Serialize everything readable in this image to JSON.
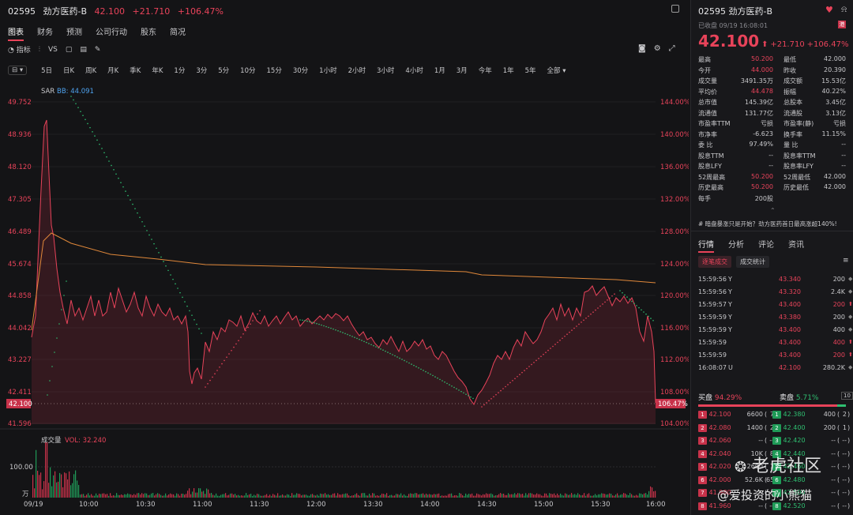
{
  "header": {
    "code": "02595",
    "name": "劲方医药-B",
    "price": "42.100",
    "change": "+21.710",
    "pct": "+106.47%"
  },
  "tabs": [
    "图表",
    "财务",
    "预测",
    "公司行动",
    "股东",
    "简况"
  ],
  "tools": {
    "indicator": "指标",
    "vs": "VS"
  },
  "periods": [
    "5日",
    "日K",
    "周K",
    "月K",
    "季K",
    "年K",
    "1分",
    "3分",
    "5分",
    "10分",
    "15分",
    "30分",
    "1小时",
    "2小时",
    "3小时",
    "4小时",
    "1月",
    "3月",
    "今年",
    "1年",
    "5年",
    "全部"
  ],
  "chart": {
    "indicator_label": "SAR",
    "bb_label": "BB: 44.091",
    "price_ticks": [
      "49.752",
      "48.936",
      "48.120",
      "47.305",
      "46.489",
      "45.674",
      "44.858",
      "44.042",
      "43.227",
      "42.411",
      "41.596"
    ],
    "pct_ticks": [
      "144.00%",
      "140.00%",
      "136.00%",
      "132.00%",
      "128.00%",
      "124.00%",
      "120.00%",
      "116.00%",
      "112.00%",
      "108.00%",
      "104.00%"
    ],
    "current_price": "42.100",
    "current_pct": "106.47%",
    "vol_label": "成交量",
    "vol_value": "VOL: 32.240",
    "vol_tick": "100.00",
    "vol_unit": "万",
    "time_ticks": [
      "09/19",
      "10:00",
      "10:30",
      "11:00",
      "11:30",
      "12:00",
      "13:30",
      "14:00",
      "14:30",
      "15:00",
      "15:30",
      "16:00"
    ]
  },
  "right": {
    "code": "02595",
    "name": "劲方医药-B",
    "close_info": "已收盘 09/19 16:08:01",
    "price": "42.100",
    "change": "+21.710",
    "pct": "+106.47%",
    "stats": [
      [
        "最高",
        "50.200",
        "最低",
        "42.000"
      ],
      [
        "今开",
        "44.000",
        "昨收",
        "20.390"
      ],
      [
        "成交量",
        "3491.35万",
        "成交额",
        "15.53亿"
      ],
      [
        "平均价",
        "44.478",
        "振幅",
        "40.22%"
      ],
      [
        "总市值",
        "145.39亿",
        "总股本",
        "3.45亿"
      ],
      [
        "流通值",
        "131.77亿",
        "流通股",
        "3.13亿"
      ],
      [
        "市盈率TTM",
        "亏损",
        "市盈率(静)",
        "亏损"
      ],
      [
        "市净率",
        "-6.623",
        "换手率",
        "11.15%"
      ],
      [
        "委 比",
        "97.49%",
        "量 比",
        "--"
      ],
      [
        "股息TTM",
        "--",
        "股息率TTM",
        "--"
      ],
      [
        "股息LFY",
        "--",
        "股息率LFY",
        "--"
      ],
      [
        "52周最高",
        "50.200",
        "52周最低",
        "42.000"
      ],
      [
        "历史最高",
        "50.200",
        "历史最低",
        "42.000"
      ],
      [
        "每手",
        "200股",
        "",
        ""
      ]
    ],
    "news": "暗盘暴涨只是开始？劲方医药首日最高涨超140%!",
    "tabs": [
      "行情",
      "分析",
      "评论",
      "资讯"
    ],
    "subtabs": [
      "逐笔成交",
      "成交统计"
    ],
    "trades": [
      [
        "15:59:56",
        "Y",
        "43.340",
        "200",
        "g"
      ],
      [
        "15:59:56",
        "Y",
        "43.320",
        "2.4K",
        "g"
      ],
      [
        "15:59:57",
        "Y",
        "43.400",
        "200",
        "r"
      ],
      [
        "15:59:59",
        "Y",
        "43.380",
        "200",
        "g"
      ],
      [
        "15:59:59",
        "Y",
        "43.400",
        "400",
        "g"
      ],
      [
        "15:59:59",
        "",
        "43.400",
        "400",
        "r"
      ],
      [
        "15:59:59",
        "",
        "43.400",
        "200",
        "r"
      ],
      [
        "16:08:07",
        "U",
        "42.100",
        "280.2K",
        "g"
      ]
    ],
    "buy_label": "买盘",
    "buy_pct": "94.29%",
    "sell_label": "卖盘",
    "sell_pct": "5.71%",
    "depth": "10",
    "bids": [
      [
        "1",
        "42.100",
        "6600",
        "7"
      ],
      [
        "2",
        "42.080",
        "1400",
        "2"
      ],
      [
        "3",
        "42.060",
        "--",
        "--"
      ],
      [
        "4",
        "42.040",
        "10K",
        "8"
      ],
      [
        "5",
        "42.020",
        "2600",
        "1"
      ],
      [
        "6",
        "42.000",
        "52.6K",
        "65"
      ],
      [
        "7",
        "41.980",
        "--",
        "--"
      ],
      [
        "8",
        "41.960",
        "--",
        "--"
      ]
    ],
    "asks": [
      [
        "1",
        "42.380",
        "400",
        "2"
      ],
      [
        "2",
        "42.400",
        "200",
        "1"
      ],
      [
        "3",
        "42.420",
        "--",
        "--"
      ],
      [
        "4",
        "42.440",
        "--",
        "--"
      ],
      [
        "5",
        "42.460",
        "--",
        "--"
      ],
      [
        "6",
        "42.480",
        "--",
        "--"
      ],
      [
        "7",
        "42.500",
        "--",
        "--"
      ],
      [
        "8",
        "42.520",
        "--",
        "--"
      ]
    ],
    "watermark1": "老虎社区",
    "watermark2": "@爱投资的小熊猫"
  }
}
